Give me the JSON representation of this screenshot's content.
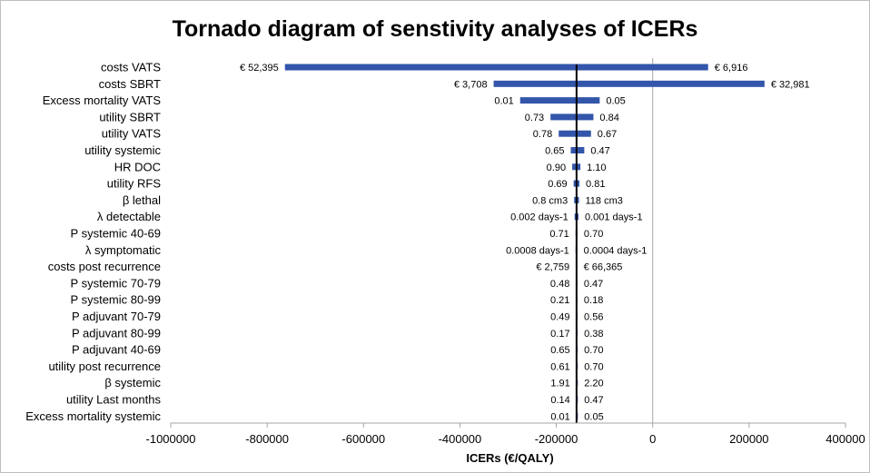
{
  "chart_data": {
    "type": "tornado",
    "title": "Tornado diagram of senstivity analyses of ICERs",
    "xlabel": "ICERs (€/QALY)",
    "xlim": [
      -1000000,
      400000
    ],
    "x_ticks": [
      -1000000,
      -800000,
      -600000,
      -400000,
      -200000,
      0,
      200000,
      400000
    ],
    "x_tick_labels": [
      "-1000000",
      "-800000",
      "-600000",
      "-400000",
      "-200000",
      "0",
      "200000",
      "400000"
    ],
    "base_case": -158000,
    "bar_color": "#3355aa",
    "base_line_color": "#000000",
    "zero_line_color": "#a6a6a6",
    "parameters": [
      {
        "name": "costs VATS",
        "low": -763000,
        "high": 115000,
        "low_label": "€ 52,395",
        "high_label": "€ 6,916"
      },
      {
        "name": "costs SBRT",
        "low": -330000,
        "high": 232000,
        "low_label": "€ 3,708",
        "high_label": "€ 32,981"
      },
      {
        "name": "Excess mortality VATS",
        "low": -275000,
        "high": -110000,
        "low_label": "0.01",
        "high_label": "0.05"
      },
      {
        "name": "utility SBRT",
        "low": -212000,
        "high": -123000,
        "low_label": "0.73",
        "high_label": "0.84"
      },
      {
        "name": "utility VATS",
        "low": -195000,
        "high": -128000,
        "low_label": "0.78",
        "high_label": "0.67"
      },
      {
        "name": "utility systemic",
        "low": -170000,
        "high": -142000,
        "low_label": "0.65",
        "high_label": "0.47"
      },
      {
        "name": "HR DOC",
        "low": -167000,
        "high": -150000,
        "low_label": "0.90",
        "high_label": "1.10"
      },
      {
        "name": "utility RFS",
        "low": -164000,
        "high": -152000,
        "low_label": "0.69",
        "high_label": "0.81"
      },
      {
        "name": "β lethal",
        "low": -163000,
        "high": -153000,
        "low_label": "0.8 cm3",
        "high_label": "118 cm3"
      },
      {
        "name": "λ detectable",
        "low": -162000,
        "high": -154000,
        "low_label": "0.002 days-1",
        "high_label": "0.001 days-1"
      },
      {
        "name": "P  systemic 40-69",
        "low": -160000,
        "high": -156000,
        "low_label": "0.71",
        "high_label": "0.70"
      },
      {
        "name": "λ symptomatic",
        "low": -160000,
        "high": -156500,
        "low_label": "0.0008 days-1",
        "high_label": "0.0004 days-1"
      },
      {
        "name": "costs post recurrence",
        "low": -159500,
        "high": -157000,
        "low_label": "€ 2,759",
        "high_label": "€ 66,365"
      },
      {
        "name": "P  systemic 70-79",
        "low": -159000,
        "high": -157500,
        "low_label": "0.48",
        "high_label": "0.47"
      },
      {
        "name": "P  systemic 80-99",
        "low": -158800,
        "high": -157600,
        "low_label": "0.21",
        "high_label": "0.18"
      },
      {
        "name": "P adjuvant 70-79",
        "low": -158600,
        "high": -157700,
        "low_label": "0.49",
        "high_label": "0.56"
      },
      {
        "name": "P adjuvant 80-99",
        "low": -158500,
        "high": -157800,
        "low_label": "0.17",
        "high_label": "0.38"
      },
      {
        "name": "P adjuvant 40-69",
        "low": -158400,
        "high": -157800,
        "low_label": "0.65",
        "high_label": "0.70"
      },
      {
        "name": "utility post recurrence",
        "low": -158300,
        "high": -157900,
        "low_label": "0.61",
        "high_label": "0.70"
      },
      {
        "name": "β systemic",
        "low": -158200,
        "high": -157900,
        "low_label": "1.91",
        "high_label": "2.20"
      },
      {
        "name": "utility Last months",
        "low": -158200,
        "high": -157900,
        "low_label": "0.14",
        "high_label": "0.47"
      },
      {
        "name": "Excess mortality systemic",
        "low": -158100,
        "high": -157900,
        "low_label": "0.01",
        "high_label": "0.05"
      }
    ]
  }
}
